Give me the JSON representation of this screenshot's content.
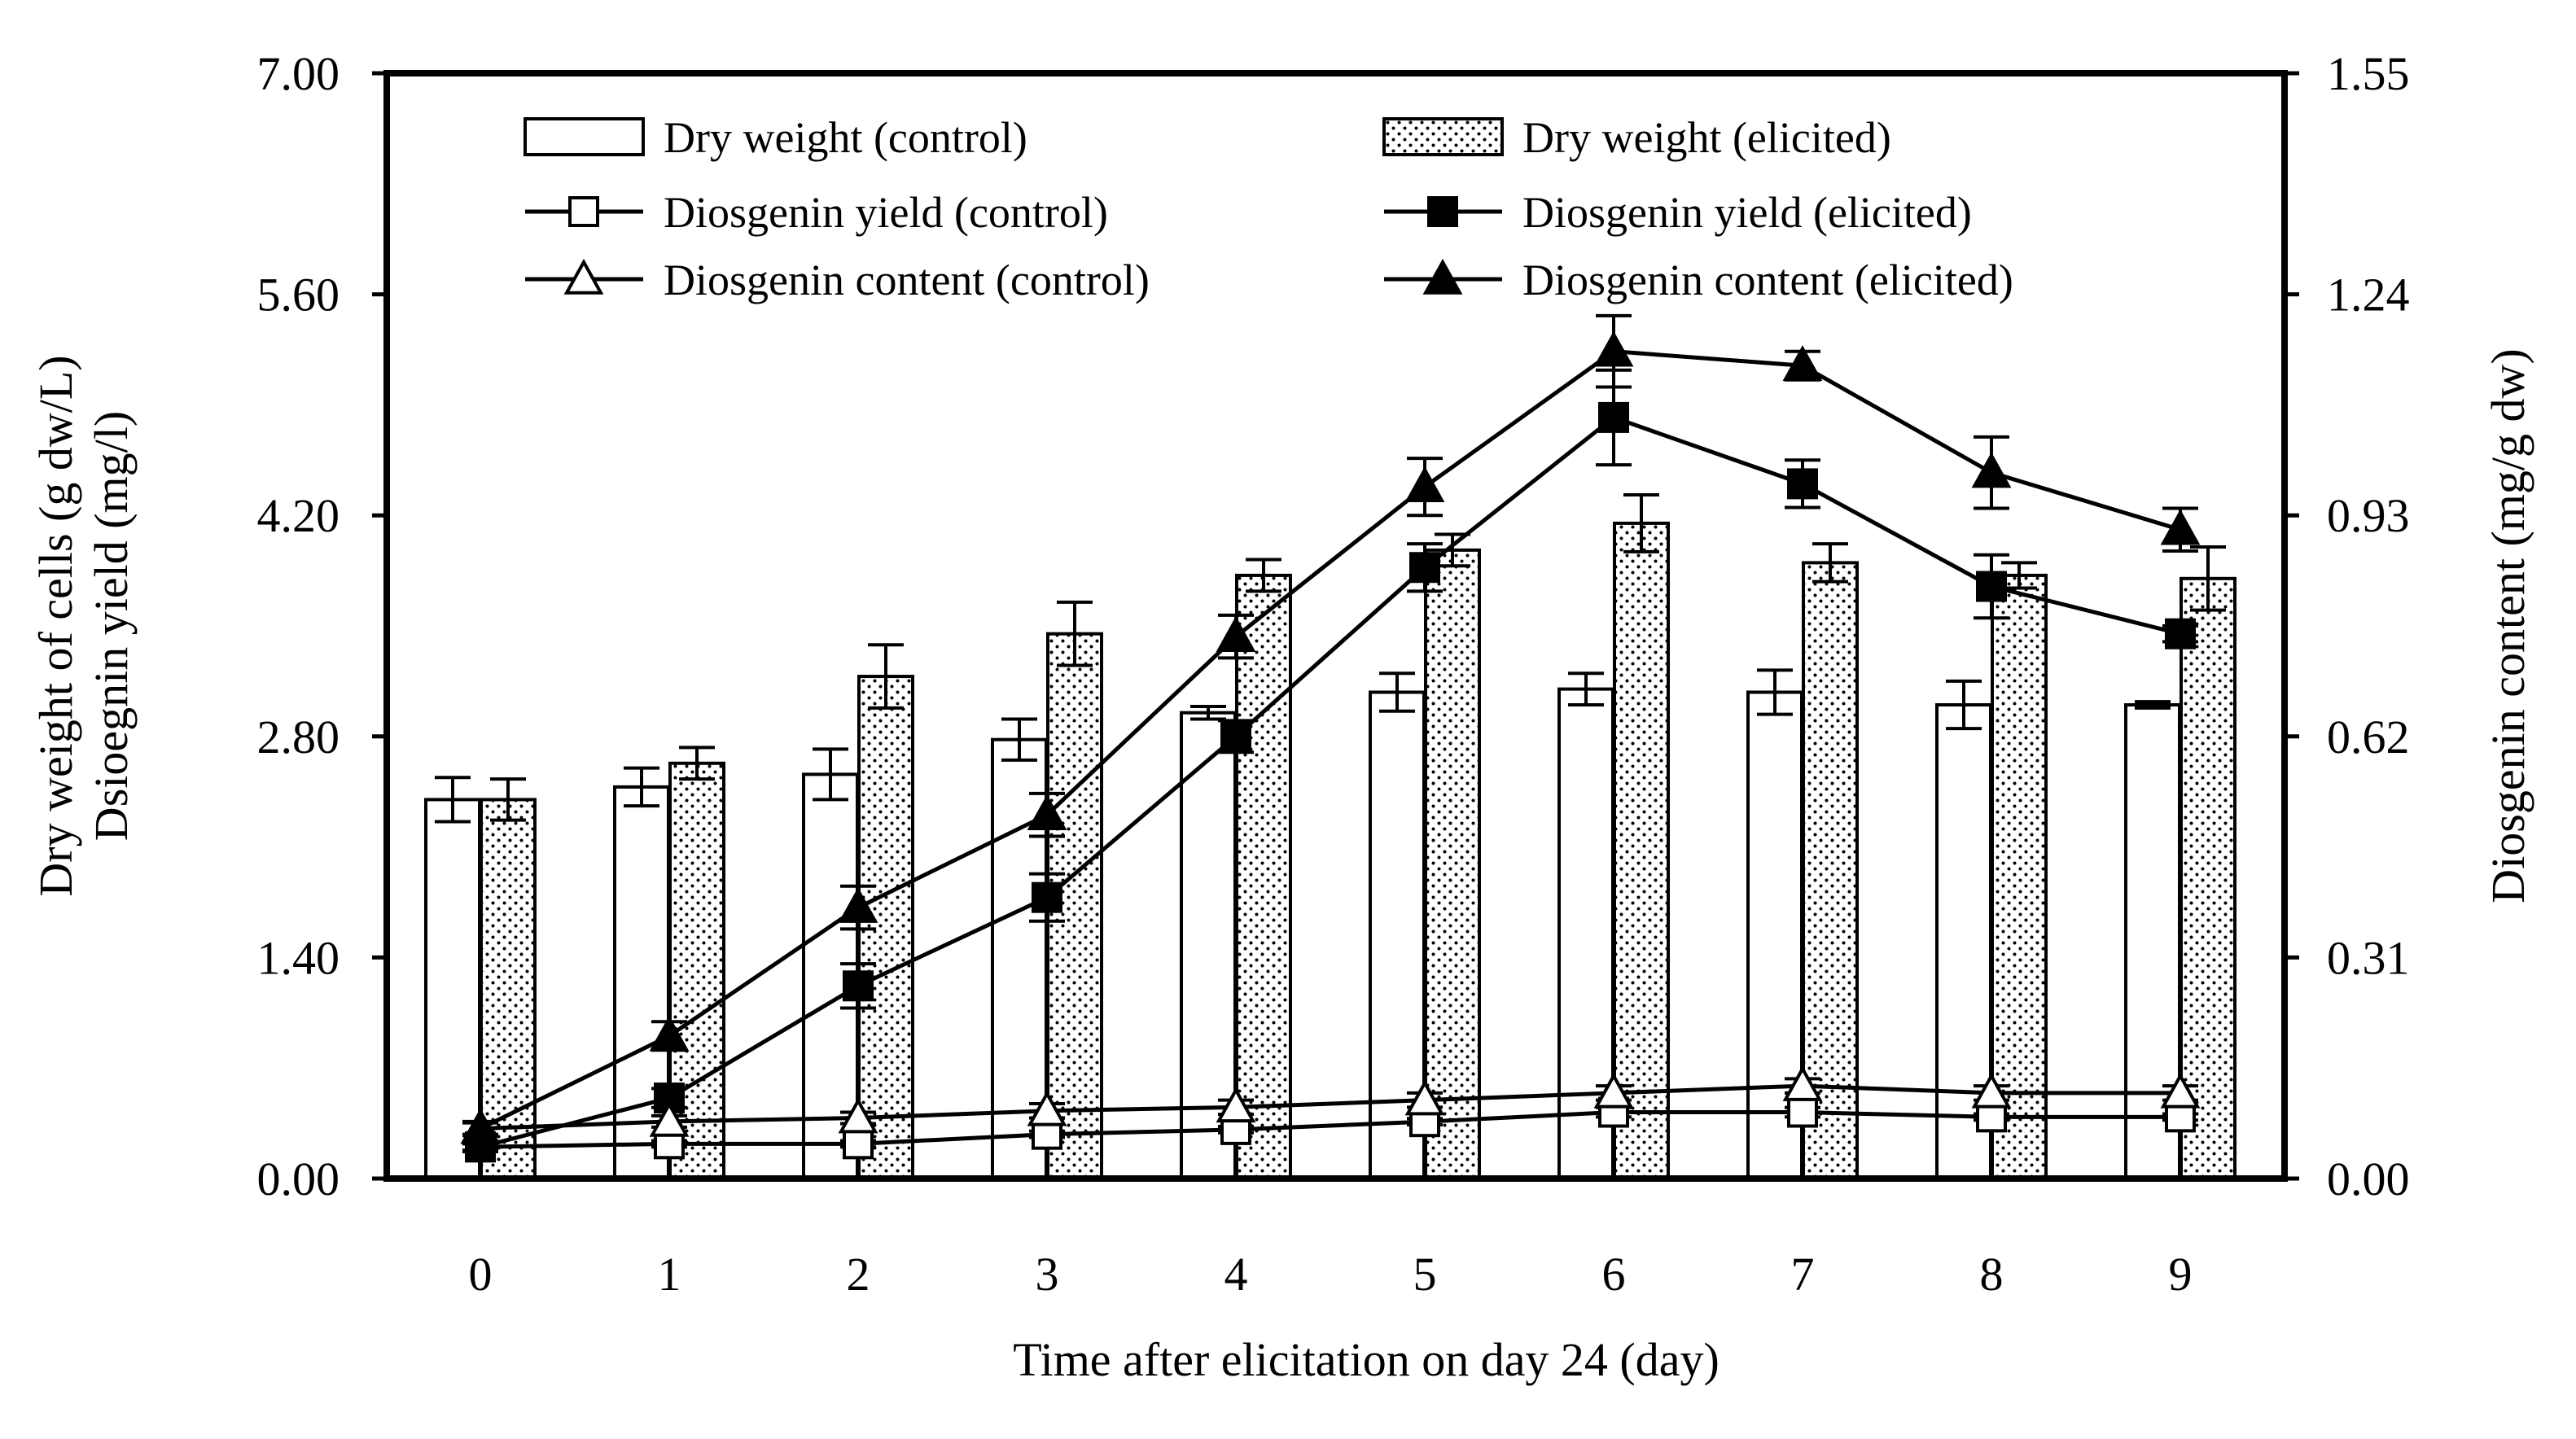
{
  "chart_data": {
    "type": "bar",
    "title": "",
    "xlabel": "Time after elicitation on day 24 (day)",
    "ylabel_left_line1": "Dry weight of cells (g dw/L)",
    "ylabel_left_line2": "Dsioegnin yield (mg/l)",
    "ylabel_right": "Diosgenin content (mg/g dw)",
    "ylim_left": [
      0,
      7.0
    ],
    "ylim_right": [
      0,
      1.55
    ],
    "left_ticks": [
      "0.00",
      "1.40",
      "2.80",
      "4.20",
      "5.60",
      "7.00"
    ],
    "right_ticks": [
      "0.00",
      "0.31",
      "0.62",
      "0.93",
      "1.24",
      "1.55"
    ],
    "categories": [
      "0",
      "1",
      "2",
      "3",
      "4",
      "5",
      "6",
      "7",
      "8",
      "9"
    ],
    "grid": false,
    "legend_position": "top",
    "series": [
      {
        "name": "Dry weight (control)",
        "kind": "bar",
        "fill": "white",
        "axis": "left",
        "values": [
          2.4,
          2.48,
          2.56,
          2.78,
          2.95,
          3.08,
          3.1,
          3.08,
          3.0,
          3.0
        ],
        "errors": [
          0.14,
          0.12,
          0.16,
          0.13,
          0.04,
          0.12,
          0.1,
          0.14,
          0.15,
          0.02
        ]
      },
      {
        "name": "Dry weight (elicited)",
        "kind": "bar",
        "fill": "dotted",
        "axis": "left",
        "values": [
          2.4,
          2.63,
          3.18,
          3.45,
          3.82,
          3.98,
          4.15,
          3.9,
          3.82,
          3.8
        ],
        "errors": [
          0.13,
          0.1,
          0.2,
          0.2,
          0.1,
          0.1,
          0.18,
          0.12,
          0.08,
          0.2
        ]
      },
      {
        "name": "Diosgenin yield (control)",
        "kind": "line",
        "marker": "square-open",
        "axis": "left",
        "values": [
          0.2,
          0.22,
          0.22,
          0.28,
          0.31,
          0.36,
          0.42,
          0.42,
          0.39,
          0.39
        ],
        "errors": [
          0.02,
          0.02,
          0.02,
          0.02,
          0.02,
          0.02,
          0.03,
          0.03,
          0.02,
          0.02
        ]
      },
      {
        "name": "Diosgenin yield (elicited)",
        "kind": "line",
        "marker": "square-filled",
        "axis": "left",
        "values": [
          0.2,
          0.51,
          1.22,
          1.78,
          2.8,
          3.87,
          4.82,
          4.4,
          3.75,
          3.45
        ],
        "errors": [
          0.03,
          0.06,
          0.14,
          0.15,
          0.1,
          0.15,
          0.3,
          0.15,
          0.2,
          0.05
        ]
      },
      {
        "name": "Diosgenin content (control)",
        "kind": "line",
        "marker": "triangle-open",
        "axis": "right",
        "values": [
          0.07,
          0.08,
          0.085,
          0.095,
          0.1,
          0.11,
          0.12,
          0.13,
          0.12,
          0.12
        ],
        "errors": [
          0.008,
          0.008,
          0.008,
          0.01,
          0.01,
          0.01,
          0.01,
          0.01,
          0.01,
          0.01
        ]
      },
      {
        "name": "Diosgenin content (elicited)",
        "kind": "line",
        "marker": "triangle-filled",
        "axis": "right",
        "values": [
          0.07,
          0.2,
          0.38,
          0.51,
          0.76,
          0.97,
          1.16,
          1.14,
          0.99,
          0.91
        ],
        "errors": [
          0.01,
          0.02,
          0.03,
          0.03,
          0.03,
          0.04,
          0.05,
          0.02,
          0.05,
          0.03
        ]
      }
    ]
  }
}
